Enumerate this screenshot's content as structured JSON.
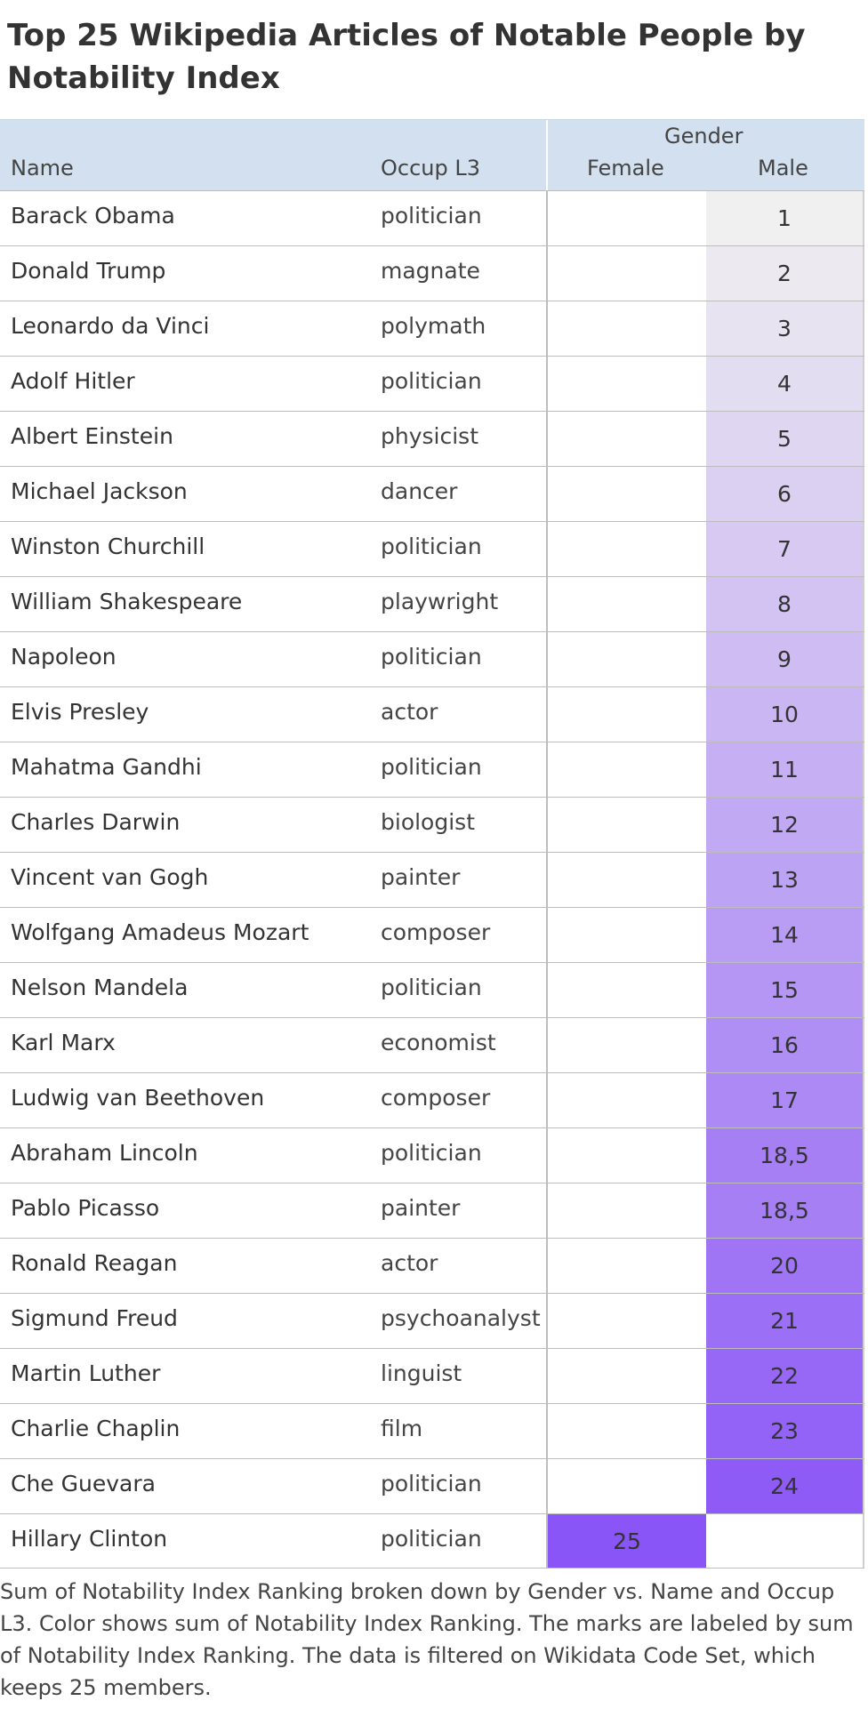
{
  "title": "Top 25 Wikipedia Articles of Notable People by Notability Index",
  "header": {
    "name": "Name",
    "occupation": "Occup L3",
    "gender": "Gender",
    "female": "Female",
    "male": "Male"
  },
  "colors": {
    "header_bg": "#d3e0ef",
    "scale_low": "#f0f0f0",
    "scale_high": "#8a55f7"
  },
  "chart_data": {
    "type": "heatmap",
    "title": "Top 25 Wikipedia Articles of Notable People by Notability Index",
    "columns_group": "Gender",
    "columns": [
      "Female",
      "Male"
    ],
    "row_fields": [
      "Name",
      "Occup L3"
    ],
    "color_range": [
      1,
      25
    ],
    "rows": [
      {
        "name": "Barack Obama",
        "occupation": "politician",
        "gender": "Male",
        "value": 1,
        "label": "1"
      },
      {
        "name": "Donald Trump",
        "occupation": "magnate",
        "gender": "Male",
        "value": 2,
        "label": "2"
      },
      {
        "name": "Leonardo da Vinci",
        "occupation": "polymath",
        "gender": "Male",
        "value": 3,
        "label": "3"
      },
      {
        "name": "Adolf Hitler",
        "occupation": "politician",
        "gender": "Male",
        "value": 4,
        "label": "4"
      },
      {
        "name": "Albert Einstein",
        "occupation": "physicist",
        "gender": "Male",
        "value": 5,
        "label": "5"
      },
      {
        "name": "Michael Jackson",
        "occupation": "dancer",
        "gender": "Male",
        "value": 6,
        "label": "6"
      },
      {
        "name": "Winston Churchill",
        "occupation": "politician",
        "gender": "Male",
        "value": 7,
        "label": "7"
      },
      {
        "name": "William Shakespeare",
        "occupation": "playwright",
        "gender": "Male",
        "value": 8,
        "label": "8"
      },
      {
        "name": "Napoleon",
        "occupation": "politician",
        "gender": "Male",
        "value": 9,
        "label": "9"
      },
      {
        "name": "Elvis Presley",
        "occupation": "actor",
        "gender": "Male",
        "value": 10,
        "label": "10"
      },
      {
        "name": "Mahatma Gandhi",
        "occupation": "politician",
        "gender": "Male",
        "value": 11,
        "label": "11"
      },
      {
        "name": "Charles Darwin",
        "occupation": "biologist",
        "gender": "Male",
        "value": 12,
        "label": "12"
      },
      {
        "name": "Vincent van Gogh",
        "occupation": "painter",
        "gender": "Male",
        "value": 13,
        "label": "13"
      },
      {
        "name": "Wolfgang Amadeus Mozart",
        "occupation": "composer",
        "gender": "Male",
        "value": 14,
        "label": "14"
      },
      {
        "name": "Nelson Mandela",
        "occupation": "politician",
        "gender": "Male",
        "value": 15,
        "label": "15"
      },
      {
        "name": "Karl Marx",
        "occupation": "economist",
        "gender": "Male",
        "value": 16,
        "label": "16"
      },
      {
        "name": "Ludwig van Beethoven",
        "occupation": "composer",
        "gender": "Male",
        "value": 17,
        "label": "17"
      },
      {
        "name": "Abraham Lincoln",
        "occupation": "politician",
        "gender": "Male",
        "value": 18.5,
        "label": "18,5"
      },
      {
        "name": "Pablo Picasso",
        "occupation": "painter",
        "gender": "Male",
        "value": 18.5,
        "label": "18,5"
      },
      {
        "name": "Ronald Reagan",
        "occupation": "actor",
        "gender": "Male",
        "value": 20,
        "label": "20"
      },
      {
        "name": "Sigmund Freud",
        "occupation": "psychoanalyst",
        "gender": "Male",
        "value": 21,
        "label": "21"
      },
      {
        "name": "Martin Luther",
        "occupation": "linguist",
        "gender": "Male",
        "value": 22,
        "label": "22"
      },
      {
        "name": "Charlie Chaplin",
        "occupation": "film",
        "gender": "Male",
        "value": 23,
        "label": "23"
      },
      {
        "name": "Che Guevara",
        "occupation": "politician",
        "gender": "Male",
        "value": 24,
        "label": "24"
      },
      {
        "name": "Hillary Clinton",
        "occupation": "politician",
        "gender": "Female",
        "value": 25,
        "label": "25"
      }
    ]
  },
  "caption": "Sum of Notability Index Ranking broken down by Gender vs. Name and Occup L3.  Color shows sum of Notability Index Ranking.  The marks are labeled by sum of Notability Index Ranking. The data is filtered on Wikidata Code Set, which keeps 25 members."
}
